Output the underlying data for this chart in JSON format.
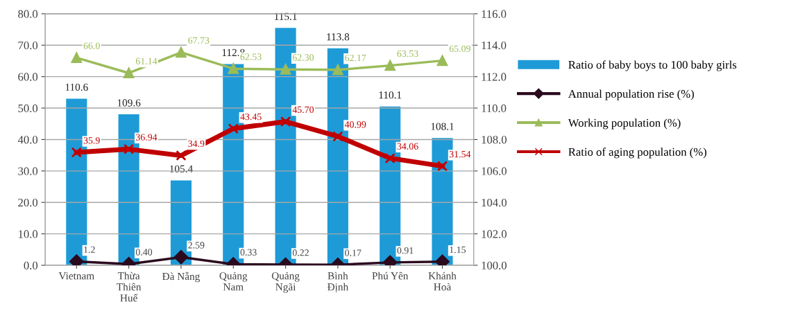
{
  "chart_data": {
    "type": "bar",
    "categories": [
      "Vietnam",
      "Thừa\nThiên\nHuế",
      "Đà Nẵng",
      "Quảng\nNam",
      "Quảng\nNgãi",
      "Bình\nĐịnh",
      "Phú Yên",
      "Khánh\nHoà"
    ],
    "series": [
      {
        "name": "Ratio of baby boys to 100 baby girls",
        "axis": "y2",
        "color": "#1e9bd7",
        "values": [
          110.6,
          109.6,
          105.4,
          112.8,
          115.1,
          113.8,
          110.1,
          108.1
        ],
        "value_labels": [
          "110.6",
          "109.6",
          "105.4",
          "112.8",
          "115.1",
          "113.8",
          "110.1",
          "108.1"
        ]
      },
      {
        "name": "Annual population rise (%)",
        "type": "line",
        "color": "#2b0a1e",
        "marker": "diamond",
        "values": [
          1.2,
          0.4,
          2.59,
          0.33,
          0.22,
          0.17,
          0.91,
          1.15
        ],
        "value_labels": [
          "1.2",
          "0.40",
          "2.59",
          "0.33",
          "0.22",
          "0.17",
          "0.91",
          "1.15"
        ]
      },
      {
        "name": "Working population (%)",
        "type": "line",
        "color": "#9bbb59",
        "marker": "triangle",
        "values": [
          66.0,
          61.14,
          67.73,
          62.53,
          62.3,
          62.17,
          63.53,
          65.09
        ],
        "value_labels": [
          "66.0",
          "61.14",
          "67.73",
          "62.53",
          "62.30",
          "62.17",
          "63.53",
          "65.09"
        ]
      },
      {
        "name": "Ratio of aging population (%)",
        "type": "line",
        "color": "#c00000",
        "marker": "cross",
        "values": [
          35.9,
          36.94,
          34.9,
          43.45,
          45.7,
          40.99,
          34.06,
          31.54
        ],
        "value_labels": [
          "35.9",
          "36.94",
          "34.9",
          "43.45",
          "45.70",
          "40.99",
          "34.06",
          "31.54"
        ]
      }
    ],
    "ylim": [
      0,
      80
    ],
    "yticks": [
      {
        "value": 0,
        "label": "0.0"
      },
      {
        "value": 10,
        "label": "10.0"
      },
      {
        "value": 20,
        "label": "20.0"
      },
      {
        "value": 30,
        "label": "30.0"
      },
      {
        "value": 40,
        "label": "40.0"
      },
      {
        "value": 50,
        "label": "50.0"
      },
      {
        "value": 60,
        "label": "60.0"
      },
      {
        "value": 70,
        "label": "70.0"
      },
      {
        "value": 80,
        "label": "80.0"
      }
    ],
    "y2lim": [
      100,
      116
    ],
    "y2ticks": [
      {
        "value": 100,
        "label": "100.0"
      },
      {
        "value": 102,
        "label": "102.0"
      },
      {
        "value": 104,
        "label": "104.0"
      },
      {
        "value": 106,
        "label": "106.0"
      },
      {
        "value": 108,
        "label": "108.0"
      },
      {
        "value": 110,
        "label": "110.0"
      },
      {
        "value": 112,
        "label": "112.0"
      },
      {
        "value": 114,
        "label": "114.0"
      },
      {
        "value": 116,
        "label": "116.0"
      }
    ],
    "grid": "y",
    "legend": "right"
  }
}
